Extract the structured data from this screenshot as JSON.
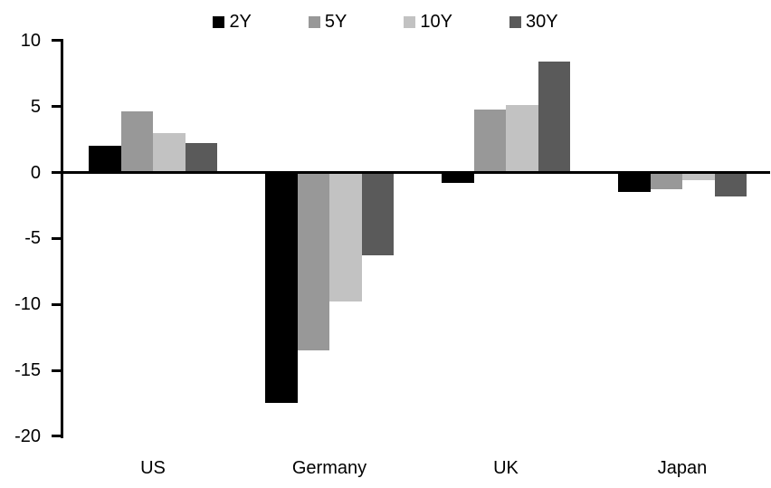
{
  "chart_data": {
    "type": "bar",
    "title": "",
    "categories": [
      "US",
      "Germany",
      "UK",
      "Japan"
    ],
    "series": [
      {
        "name": "2Y",
        "color": "#000000",
        "values": [
          2.0,
          -17.5,
          -0.8,
          -1.5
        ]
      },
      {
        "name": "5Y",
        "color": "#989898",
        "values": [
          4.6,
          -13.5,
          4.8,
          -1.3
        ]
      },
      {
        "name": "10Y",
        "color": "#c2c2c2",
        "values": [
          3.0,
          -9.8,
          5.1,
          -0.6
        ]
      },
      {
        "name": "30Y",
        "color": "#5a5a5a",
        "values": [
          2.2,
          -6.3,
          8.4,
          -1.8
        ]
      }
    ],
    "xlabel": "",
    "ylabel": "",
    "ylim": [
      -20,
      10
    ],
    "yticks": [
      10,
      5,
      0,
      -5,
      -10,
      -15,
      -20
    ],
    "legend_position": "top",
    "grid": false,
    "axis_color": "#000000",
    "background_color": "#ffffff"
  }
}
